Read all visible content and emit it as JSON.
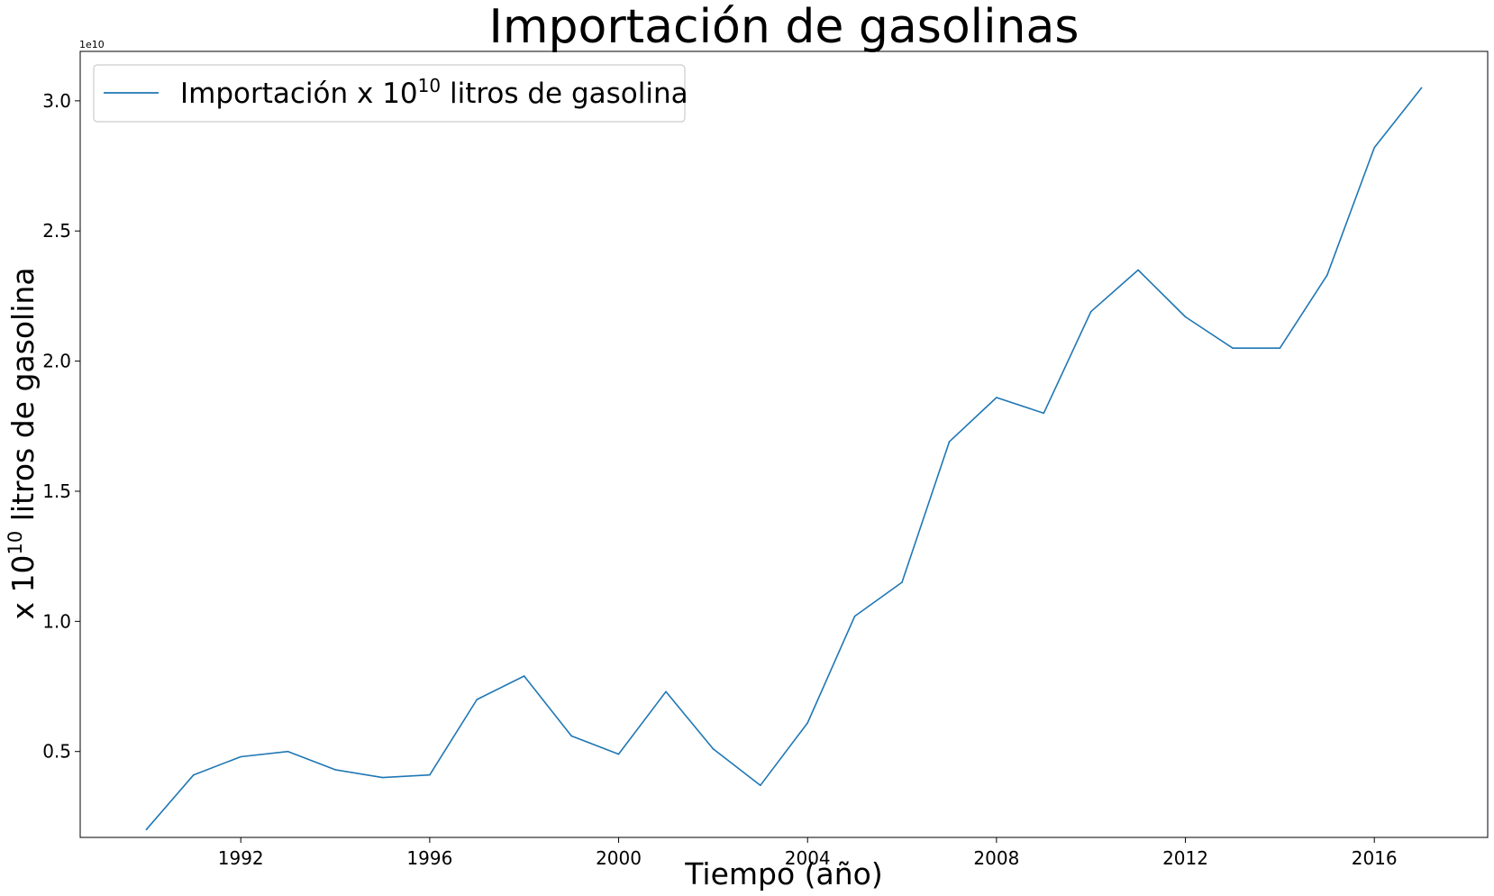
{
  "chart_data": {
    "type": "line",
    "title": "Importación de gasolinas",
    "xlabel": "Tiempo (año)",
    "ylabel": {
      "prefix": "x 10",
      "sup": "10",
      "suffix": " litros de gasolina"
    },
    "y_offset_label": "1e10",
    "xlim": [
      1988.6,
      2018.4
    ],
    "ylim": [
      0.17,
      3.19
    ],
    "x_ticks": [
      1992,
      1996,
      2000,
      2004,
      2008,
      2012,
      2016
    ],
    "y_ticks": [
      0.5,
      1.0,
      1.5,
      2.0,
      2.5,
      3.0
    ],
    "y_tick_labels": [
      "0.5",
      "1.0",
      "1.5",
      "2.0",
      "2.5",
      "3.0"
    ],
    "legend": {
      "position": "upper-left"
    },
    "series": [
      {
        "name": {
          "prefix": "Importación x 10",
          "sup": "10",
          "suffix": " litros de gasolina"
        },
        "color": "#1f77b4",
        "x": [
          1990,
          1991,
          1992,
          1993,
          1994,
          1995,
          1996,
          1997,
          1998,
          1999,
          2000,
          2001,
          2002,
          2003,
          2004,
          2005,
          2006,
          2007,
          2008,
          2009,
          2010,
          2011,
          2012,
          2013,
          2014,
          2015,
          2016,
          2017
        ],
        "values": [
          0.2,
          0.41,
          0.48,
          0.5,
          0.43,
          0.4,
          0.41,
          0.7,
          0.79,
          0.56,
          0.49,
          0.73,
          0.51,
          0.37,
          0.61,
          1.02,
          1.15,
          1.69,
          1.86,
          1.8,
          2.19,
          2.35,
          2.17,
          2.05,
          2.05,
          2.33,
          2.82,
          3.05
        ]
      }
    ]
  }
}
